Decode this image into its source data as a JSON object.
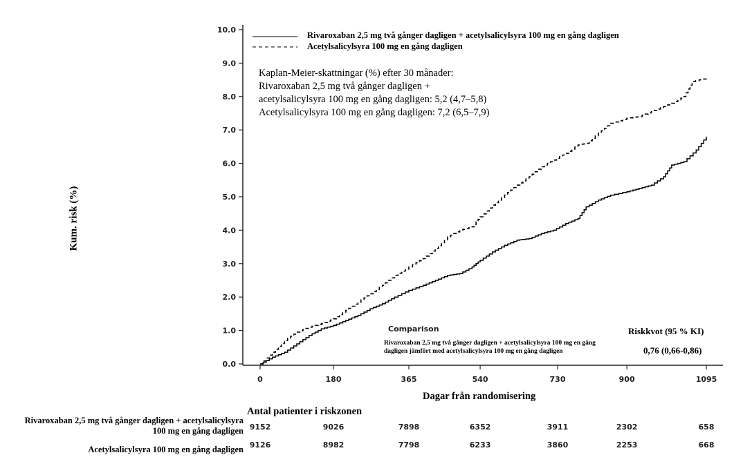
{
  "chart_data": {
    "type": "line",
    "xlabel": "Dagar från randomisering",
    "ylabel": "Kum. risk (%)",
    "xlim": [
      0,
      1095
    ],
    "ylim": [
      0,
      10
    ],
    "x_ticks": [
      "0",
      "180",
      "365",
      "540",
      "730",
      "900",
      "1095"
    ],
    "x_tick_values": [
      0,
      180,
      365,
      540,
      730,
      900,
      1095
    ],
    "y_ticks": [
      "0.0",
      "1.0",
      "2.0",
      "3.0",
      "4.0",
      "5.0",
      "6.0",
      "7.0",
      "8.0",
      "9.0",
      "10.0"
    ],
    "y_tick_values": [
      0,
      1,
      2,
      3,
      4,
      5,
      6,
      7,
      8,
      9,
      10
    ],
    "grid": false,
    "legend_position": "top-left",
    "series": [
      {
        "name": "Rivaroxaban 2,5 mg två gånger dagligen + acetylsalicylsyra 100 mg en gång dagligen",
        "style": "solid",
        "color": "#000000",
        "x": [
          0,
          30,
          60,
          90,
          120,
          150,
          180,
          210,
          240,
          270,
          300,
          330,
          365,
          400,
          430,
          460,
          490,
          520,
          540,
          570,
          600,
          630,
          660,
          690,
          720,
          750,
          780,
          800,
          830,
          860,
          900,
          930,
          960,
          990,
          1010,
          1040,
          1070,
          1095
        ],
        "y": [
          0,
          0.2,
          0.35,
          0.6,
          0.85,
          1.05,
          1.15,
          1.3,
          1.45,
          1.65,
          1.8,
          2.0,
          2.2,
          2.35,
          2.5,
          2.65,
          2.7,
          2.9,
          3.1,
          3.35,
          3.55,
          3.7,
          3.75,
          3.9,
          4.0,
          4.2,
          4.35,
          4.7,
          4.9,
          5.05,
          5.15,
          5.25,
          5.35,
          5.6,
          5.95,
          6.05,
          6.4,
          6.8
        ]
      },
      {
        "name": "Acetylsalicylsyra 100 mg en gång dagligen",
        "style": "dashed",
        "color": "#000000",
        "x": [
          0,
          30,
          60,
          90,
          120,
          150,
          180,
          210,
          240,
          270,
          300,
          330,
          365,
          400,
          430,
          460,
          490,
          520,
          540,
          570,
          600,
          630,
          660,
          690,
          720,
          750,
          780,
          800,
          830,
          860,
          900,
          930,
          960,
          990,
          1010,
          1040,
          1060,
          1095
        ],
        "y": [
          0,
          0.35,
          0.7,
          0.95,
          1.1,
          1.2,
          1.35,
          1.6,
          1.85,
          2.1,
          2.35,
          2.65,
          2.9,
          3.15,
          3.45,
          3.8,
          4.0,
          4.1,
          4.4,
          4.75,
          5.05,
          5.35,
          5.6,
          5.9,
          6.1,
          6.3,
          6.55,
          6.6,
          6.9,
          7.2,
          7.35,
          7.4,
          7.55,
          7.7,
          7.8,
          8.0,
          8.45,
          8.55
        ]
      }
    ]
  },
  "legend": {
    "solid_label": "Rivaroxaban 2,5 mg två gånger dagligen + acetylsalicylsyra 100 mg en gång dagligen",
    "dashed_label": "Acetylsalicylsyra 100 mg en gång dagligen"
  },
  "km_estimates": {
    "line1": "Kaplan-Meier-skattningar (%) efter 30 månader:",
    "line2": "Rivaroxaban 2,5 mg två gånger dagligen +",
    "line3": "acetylsalicylsyra 100 mg en gång dagligen: 5,2 (4,7–5,8)",
    "line4": "Acetylsalicylsyra 100 mg en gång dagligen: 7,2 (6,5–7,9)"
  },
  "comparison": {
    "title": "Comparison",
    "line1": "Rivaroxaban 2,5 mg två gånger dagligen + acetylsalicylsyra 100 mg en gång",
    "line2": "dagligen jämfört med acetylsalicylsyra 100 mg en gång dagligen",
    "hr_title": "Riskkvot (95 % KI)",
    "hr_value": "0,76 (0,66-0,86)"
  },
  "risk_table": {
    "title": "Antal patienter i riskzonen",
    "rows": [
      {
        "label_line1": "Rivaroxaban 2,5 mg två gånger dagligen + acetylsalicylsyra",
        "label_line2": "100 mg en gång dagligen",
        "values": [
          "9152",
          "9026",
          "7898",
          "6352",
          "3911",
          "2302",
          "658"
        ]
      },
      {
        "label_line1": "Acetylsalicylsyra 100 mg en gång dagligen",
        "values": [
          "9126",
          "8982",
          "7798",
          "6233",
          "3860",
          "2253",
          "668"
        ]
      }
    ]
  }
}
